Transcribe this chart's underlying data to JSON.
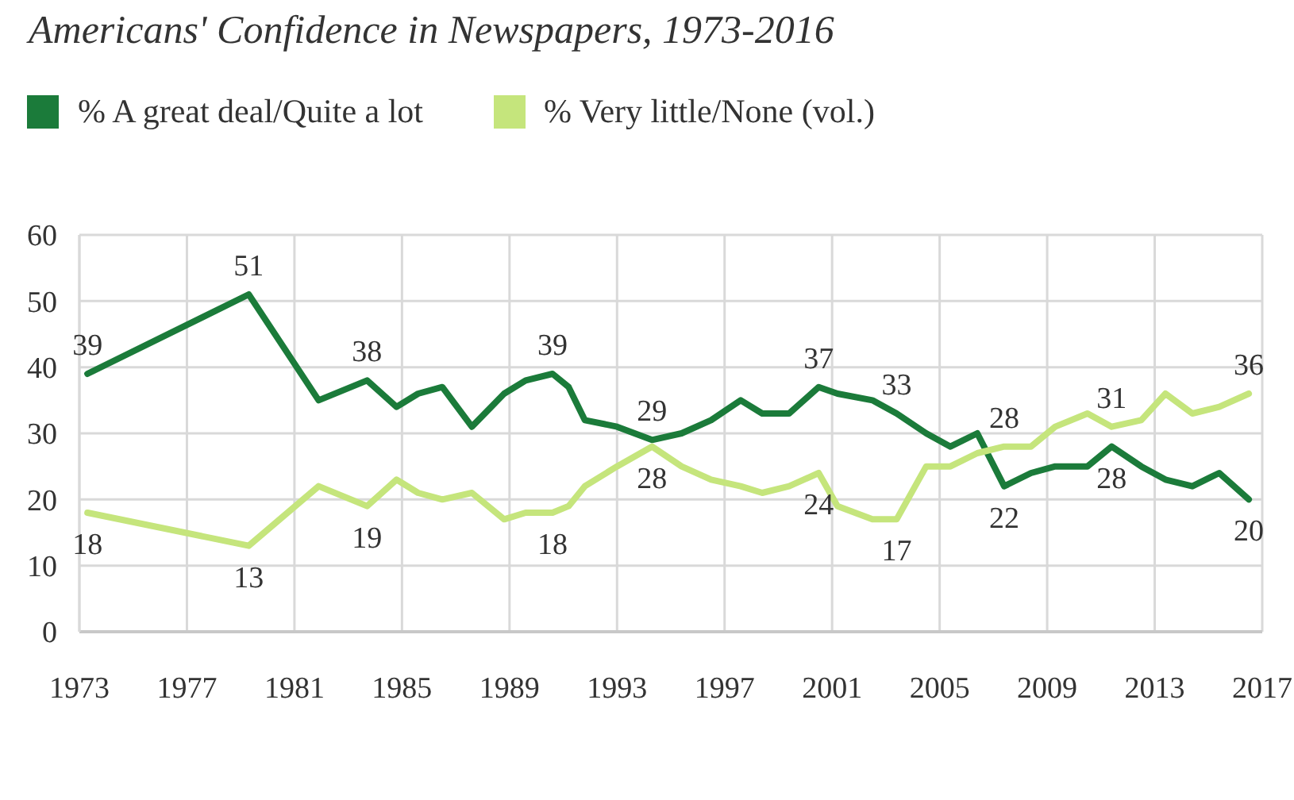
{
  "chart_data": {
    "type": "line",
    "title": "Americans' Confidence in Newspapers, 1973-2016",
    "x": [
      1973.3,
      1979.3,
      1981.9,
      1983.7,
      1984.8,
      1985.6,
      1986.5,
      1987.6,
      1988.8,
      1989.6,
      1990.6,
      1991.2,
      1991.8,
      1993.0,
      1994.3,
      1995.4,
      1996.5,
      1997.6,
      1998.4,
      1999.4,
      2000.5,
      2001.2,
      2002.5,
      2003.4,
      2004.5,
      2005.4,
      2006.4,
      2007.4,
      2008.4,
      2009.3,
      2010.5,
      2011.4,
      2012.5,
      2013.4,
      2014.4,
      2015.4,
      2016.5
    ],
    "series": [
      {
        "name": "% A great deal/Quite a lot",
        "color": "#1b7b3a",
        "values": [
          39,
          51,
          35,
          38,
          34,
          36,
          37,
          31,
          36,
          38,
          39,
          37,
          32,
          31,
          29,
          30,
          32,
          35,
          33,
          33,
          37,
          36,
          35,
          33,
          30,
          28,
          30,
          22,
          24,
          25,
          25,
          28,
          25,
          23,
          22,
          24,
          20
        ],
        "value_labels": [
          "39",
          "51",
          null,
          "38",
          null,
          null,
          null,
          null,
          null,
          null,
          "39",
          null,
          null,
          null,
          "29",
          null,
          null,
          null,
          null,
          null,
          "37",
          null,
          null,
          "33",
          null,
          null,
          null,
          "22",
          null,
          null,
          null,
          "28",
          null,
          null,
          null,
          null,
          "20"
        ]
      },
      {
        "name": "% Very little/None (vol.)",
        "color": "#c5e57c",
        "values": [
          18,
          13,
          22,
          19,
          23,
          21,
          20,
          21,
          17,
          18,
          18,
          19,
          22,
          25,
          28,
          25,
          23,
          22,
          21,
          22,
          24,
          19,
          17,
          17,
          25,
          25,
          27,
          28,
          28,
          31,
          33,
          31,
          32,
          36,
          33,
          34,
          36
        ],
        "value_labels": [
          "18",
          "13",
          null,
          "19",
          null,
          null,
          null,
          null,
          null,
          null,
          "18",
          null,
          null,
          null,
          "28",
          null,
          null,
          null,
          null,
          null,
          "24",
          null,
          null,
          "17",
          null,
          null,
          null,
          "28",
          null,
          null,
          null,
          "31",
          null,
          null,
          null,
          null,
          "36"
        ]
      }
    ],
    "xlim": [
      1973,
      2017
    ],
    "xticks": [
      1973,
      1977,
      1981,
      1985,
      1989,
      1993,
      1997,
      2001,
      2005,
      2009,
      2013,
      2017
    ],
    "ylim": [
      0,
      60
    ],
    "yticks": [
      0,
      10,
      20,
      30,
      40,
      50,
      60
    ],
    "grid": true,
    "legend": "top left",
    "line_style": "solid"
  }
}
